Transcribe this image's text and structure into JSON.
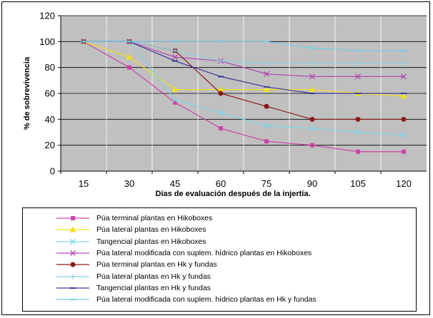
{
  "chart_data": {
    "type": "line",
    "xlabel": "Días de evaluación después de la injertía.",
    "ylabel": "% de sobrevivencia",
    "ylim": [
      0,
      120
    ],
    "yticks": [
      0,
      20,
      40,
      60,
      80,
      100,
      120
    ],
    "categories": [
      "15",
      "30",
      "45",
      "60",
      "75",
      "90",
      "105",
      "120"
    ],
    "grid": true,
    "legend_position": "bottom",
    "plot_background": "#c0c0c0",
    "series": [
      {
        "name": "Púa terminal plantas en Hikoboxes",
        "color": "#cc44aa",
        "marker": "square",
        "values": [
          100,
          80,
          53,
          33,
          23,
          20,
          15,
          15
        ]
      },
      {
        "name": "Púa lateral plantas en Hikoboxes",
        "color": "#f0e020",
        "marker": "triangle",
        "values": [
          100,
          88,
          63,
          63,
          63,
          63,
          60,
          58
        ]
      },
      {
        "name": "Tangencial plantas en Hikoboxes",
        "color": "#7fd6e8",
        "marker": "x",
        "values": [
          100,
          100,
          55,
          45,
          35,
          33,
          30,
          28
        ]
      },
      {
        "name": "Púa lateral  modificada con suplem. hídrico plantas en Hikoboxes",
        "color": "#b04ab0",
        "marker": "x",
        "values": [
          100,
          100,
          88,
          85,
          75,
          73,
          73,
          73
        ]
      },
      {
        "name": "Púa terminal plantas en Hk y fundas",
        "color": "#8b1a1a",
        "marker": "circle",
        "values": [
          100,
          100,
          93,
          60,
          50,
          40,
          40,
          40
        ]
      },
      {
        "name": "Púa lateral plantas en Hk y fundas",
        "color": "#8fd0e0",
        "marker": "plus",
        "values": [
          100,
          100,
          93,
          85,
          83,
          83,
          83,
          83
        ]
      },
      {
        "name": "Tangencial plantas en Hk y fundas",
        "color": "#3a3a9a",
        "marker": "dash",
        "values": [
          100,
          100,
          85,
          73,
          65,
          60,
          60,
          60
        ]
      },
      {
        "name": "Púa lateral  modificada con suplem. hídrico plantas en Hk y fundas",
        "color": "#6fd0e8",
        "marker": "dash",
        "values": [
          100,
          100,
          100,
          100,
          100,
          95,
          93,
          93
        ]
      }
    ]
  }
}
